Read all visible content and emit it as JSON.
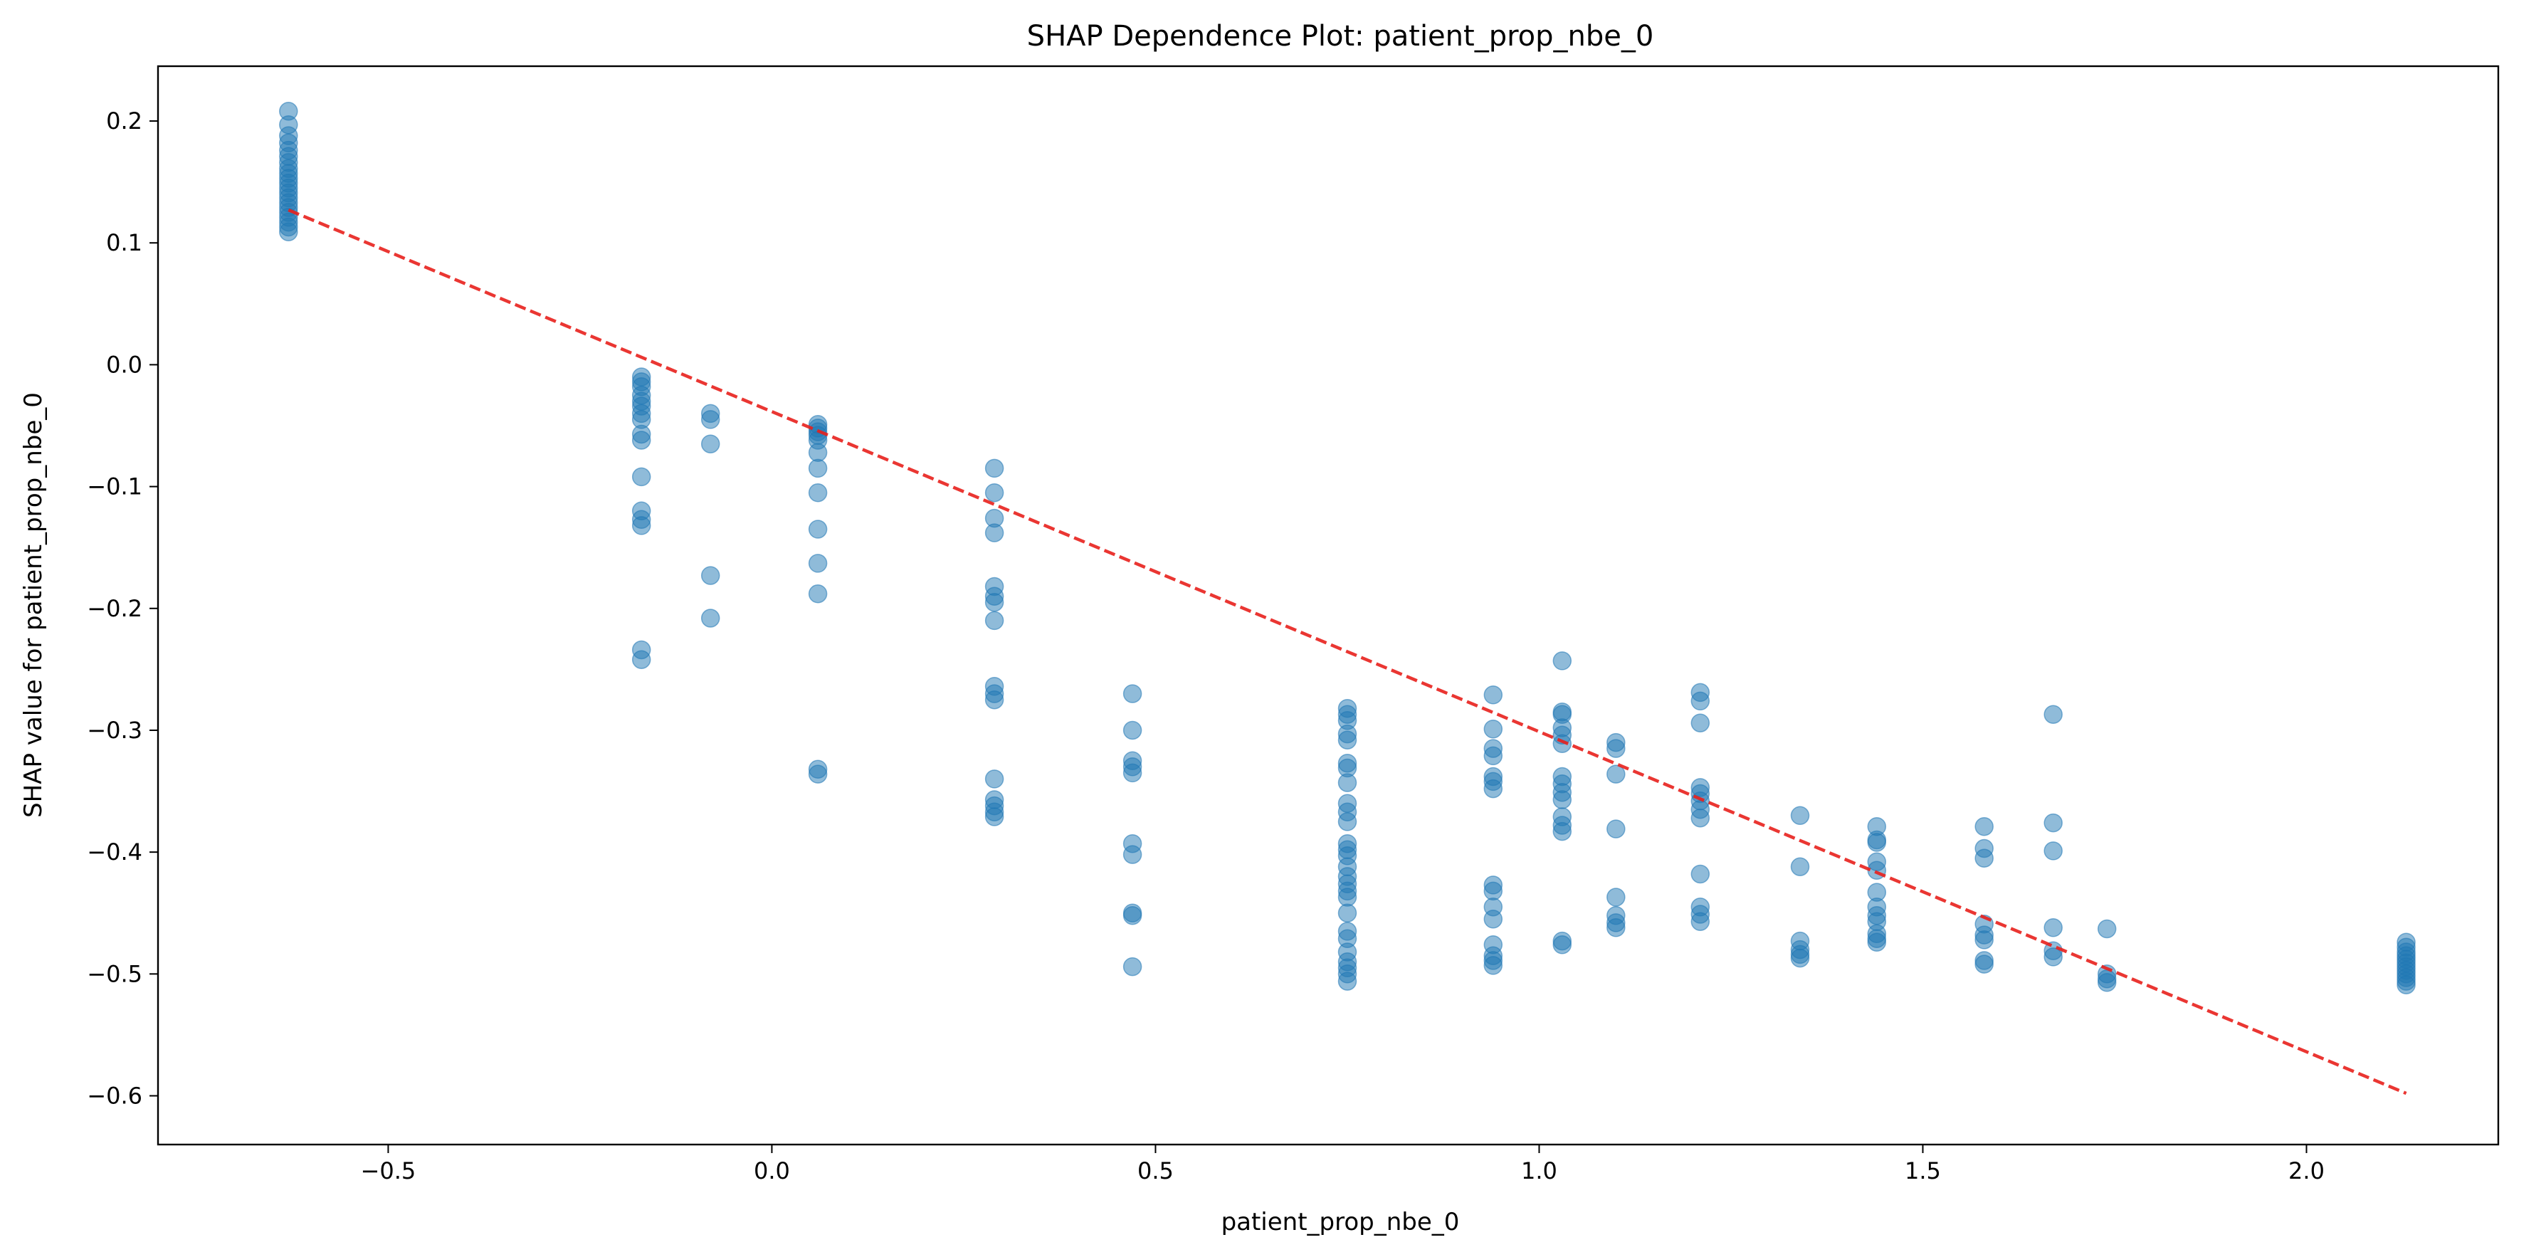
{
  "chart_data": {
    "type": "scatter",
    "title": "SHAP Dependence Plot: patient_prop_nbe_0",
    "xlabel": "patient_prop_nbe_0",
    "ylabel": "SHAP value for patient_prop_nbe_0",
    "xlim": [
      -0.8,
      2.25
    ],
    "ylim": [
      -0.64,
      0.245
    ],
    "xticks": [
      -0.5,
      0.0,
      0.5,
      1.0,
      1.5,
      2.0
    ],
    "xtick_labels": [
      "−0.5",
      "0.0",
      "0.5",
      "1.0",
      "1.5",
      "2.0"
    ],
    "yticks": [
      0.2,
      0.1,
      0.0,
      -0.1,
      -0.2,
      -0.3,
      -0.4,
      -0.5,
      -0.6
    ],
    "ytick_labels": [
      "0.2",
      "0.1",
      "0.0",
      "−0.1",
      "−0.2",
      "−0.3",
      "−0.4",
      "−0.5",
      "−0.6"
    ],
    "grid": false,
    "colors": {
      "points": "#1f77b4",
      "trend": "#e8201c"
    },
    "trend_line": {
      "x": [
        -0.63,
        2.13
      ],
      "y": [
        0.127,
        -0.598
      ],
      "style": "dashed"
    },
    "series": [
      {
        "points": [
          [
            -0.63,
            0.208
          ],
          [
            -0.63,
            0.197
          ],
          [
            -0.63,
            0.188
          ],
          [
            -0.63,
            0.182
          ],
          [
            -0.63,
            0.176
          ],
          [
            -0.63,
            0.171
          ],
          [
            -0.63,
            0.166
          ],
          [
            -0.63,
            0.161
          ],
          [
            -0.63,
            0.157
          ],
          [
            -0.63,
            0.153
          ],
          [
            -0.63,
            0.149
          ],
          [
            -0.63,
            0.145
          ],
          [
            -0.63,
            0.141
          ],
          [
            -0.63,
            0.137
          ],
          [
            -0.63,
            0.133
          ],
          [
            -0.63,
            0.129
          ],
          [
            -0.63,
            0.125
          ],
          [
            -0.63,
            0.121
          ],
          [
            -0.63,
            0.117
          ],
          [
            -0.63,
            0.113
          ],
          [
            -0.63,
            0.109
          ],
          [
            -0.17,
            -0.01
          ],
          [
            -0.17,
            -0.014
          ],
          [
            -0.17,
            -0.018
          ],
          [
            -0.17,
            -0.025
          ],
          [
            -0.17,
            -0.03
          ],
          [
            -0.17,
            -0.034
          ],
          [
            -0.17,
            -0.04
          ],
          [
            -0.17,
            -0.045
          ],
          [
            -0.17,
            -0.057
          ],
          [
            -0.17,
            -0.062
          ],
          [
            -0.17,
            -0.092
          ],
          [
            -0.17,
            -0.12
          ],
          [
            -0.17,
            -0.127
          ],
          [
            -0.17,
            -0.132
          ],
          [
            -0.17,
            -0.234
          ],
          [
            -0.17,
            -0.242
          ],
          [
            -0.08,
            -0.04
          ],
          [
            -0.08,
            -0.045
          ],
          [
            -0.08,
            -0.065
          ],
          [
            -0.08,
            -0.173
          ],
          [
            -0.08,
            -0.208
          ],
          [
            0.06,
            -0.049
          ],
          [
            0.06,
            -0.052
          ],
          [
            0.06,
            -0.055
          ],
          [
            0.06,
            -0.058
          ],
          [
            0.06,
            -0.062
          ],
          [
            0.06,
            -0.072
          ],
          [
            0.06,
            -0.085
          ],
          [
            0.06,
            -0.105
          ],
          [
            0.06,
            -0.135
          ],
          [
            0.06,
            -0.163
          ],
          [
            0.06,
            -0.188
          ],
          [
            0.06,
            -0.332
          ],
          [
            0.06,
            -0.336
          ],
          [
            0.29,
            -0.085
          ],
          [
            0.29,
            -0.105
          ],
          [
            0.29,
            -0.126
          ],
          [
            0.29,
            -0.138
          ],
          [
            0.29,
            -0.182
          ],
          [
            0.29,
            -0.19
          ],
          [
            0.29,
            -0.195
          ],
          [
            0.29,
            -0.21
          ],
          [
            0.29,
            -0.264
          ],
          [
            0.29,
            -0.27
          ],
          [
            0.29,
            -0.275
          ],
          [
            0.29,
            -0.34
          ],
          [
            0.29,
            -0.357
          ],
          [
            0.29,
            -0.362
          ],
          [
            0.29,
            -0.367
          ],
          [
            0.29,
            -0.371
          ],
          [
            0.47,
            -0.27
          ],
          [
            0.47,
            -0.3
          ],
          [
            0.47,
            -0.325
          ],
          [
            0.47,
            -0.33
          ],
          [
            0.47,
            -0.335
          ],
          [
            0.47,
            -0.393
          ],
          [
            0.47,
            -0.402
          ],
          [
            0.47,
            -0.45
          ],
          [
            0.47,
            -0.452
          ],
          [
            0.47,
            -0.494
          ],
          [
            0.75,
            -0.282
          ],
          [
            0.75,
            -0.287
          ],
          [
            0.75,
            -0.292
          ],
          [
            0.75,
            -0.303
          ],
          [
            0.75,
            -0.308
          ],
          [
            0.75,
            -0.327
          ],
          [
            0.75,
            -0.331
          ],
          [
            0.75,
            -0.343
          ],
          [
            0.75,
            -0.36
          ],
          [
            0.75,
            -0.367
          ],
          [
            0.75,
            -0.375
          ],
          [
            0.75,
            -0.393
          ],
          [
            0.75,
            -0.398
          ],
          [
            0.75,
            -0.403
          ],
          [
            0.75,
            -0.412
          ],
          [
            0.75,
            -0.42
          ],
          [
            0.75,
            -0.426
          ],
          [
            0.75,
            -0.432
          ],
          [
            0.75,
            -0.437
          ],
          [
            0.75,
            -0.45
          ],
          [
            0.75,
            -0.465
          ],
          [
            0.75,
            -0.471
          ],
          [
            0.75,
            -0.482
          ],
          [
            0.75,
            -0.49
          ],
          [
            0.75,
            -0.495
          ],
          [
            0.75,
            -0.5
          ],
          [
            0.75,
            -0.506
          ],
          [
            0.94,
            -0.271
          ],
          [
            0.94,
            -0.299
          ],
          [
            0.94,
            -0.315
          ],
          [
            0.94,
            -0.321
          ],
          [
            0.94,
            -0.338
          ],
          [
            0.94,
            -0.342
          ],
          [
            0.94,
            -0.348
          ],
          [
            0.94,
            -0.427
          ],
          [
            0.94,
            -0.432
          ],
          [
            0.94,
            -0.445
          ],
          [
            0.94,
            -0.455
          ],
          [
            0.94,
            -0.476
          ],
          [
            0.94,
            -0.485
          ],
          [
            0.94,
            -0.489
          ],
          [
            0.94,
            -0.493
          ],
          [
            1.03,
            -0.243
          ],
          [
            1.03,
            -0.285
          ],
          [
            1.03,
            -0.287
          ],
          [
            1.03,
            -0.298
          ],
          [
            1.03,
            -0.304
          ],
          [
            1.03,
            -0.311
          ],
          [
            1.03,
            -0.338
          ],
          [
            1.03,
            -0.344
          ],
          [
            1.03,
            -0.351
          ],
          [
            1.03,
            -0.357
          ],
          [
            1.03,
            -0.371
          ],
          [
            1.03,
            -0.378
          ],
          [
            1.03,
            -0.383
          ],
          [
            1.03,
            -0.473
          ],
          [
            1.03,
            -0.476
          ],
          [
            1.1,
            -0.31
          ],
          [
            1.1,
            -0.315
          ],
          [
            1.1,
            -0.336
          ],
          [
            1.1,
            -0.381
          ],
          [
            1.1,
            -0.437
          ],
          [
            1.1,
            -0.452
          ],
          [
            1.1,
            -0.458
          ],
          [
            1.1,
            -0.462
          ],
          [
            1.21,
            -0.269
          ],
          [
            1.21,
            -0.276
          ],
          [
            1.21,
            -0.294
          ],
          [
            1.21,
            -0.347
          ],
          [
            1.21,
            -0.352
          ],
          [
            1.21,
            -0.358
          ],
          [
            1.21,
            -0.365
          ],
          [
            1.21,
            -0.372
          ],
          [
            1.21,
            -0.418
          ],
          [
            1.21,
            -0.445
          ],
          [
            1.21,
            -0.451
          ],
          [
            1.21,
            -0.457
          ],
          [
            1.34,
            -0.37
          ],
          [
            1.34,
            -0.412
          ],
          [
            1.34,
            -0.473
          ],
          [
            1.34,
            -0.48
          ],
          [
            1.34,
            -0.484
          ],
          [
            1.34,
            -0.487
          ],
          [
            1.44,
            -0.379
          ],
          [
            1.44,
            -0.39
          ],
          [
            1.44,
            -0.392
          ],
          [
            1.44,
            -0.408
          ],
          [
            1.44,
            -0.415
          ],
          [
            1.44,
            -0.433
          ],
          [
            1.44,
            -0.445
          ],
          [
            1.44,
            -0.452
          ],
          [
            1.44,
            -0.457
          ],
          [
            1.44,
            -0.467
          ],
          [
            1.44,
            -0.471
          ],
          [
            1.44,
            -0.474
          ],
          [
            1.58,
            -0.379
          ],
          [
            1.58,
            -0.397
          ],
          [
            1.58,
            -0.405
          ],
          [
            1.58,
            -0.459
          ],
          [
            1.58,
            -0.468
          ],
          [
            1.58,
            -0.472
          ],
          [
            1.58,
            -0.489
          ],
          [
            1.58,
            -0.492
          ],
          [
            1.67,
            -0.287
          ],
          [
            1.67,
            -0.376
          ],
          [
            1.67,
            -0.399
          ],
          [
            1.67,
            -0.462
          ],
          [
            1.67,
            -0.481
          ],
          [
            1.67,
            -0.486
          ],
          [
            1.74,
            -0.463
          ],
          [
            1.74,
            -0.5
          ],
          [
            1.74,
            -0.504
          ],
          [
            1.74,
            -0.507
          ],
          [
            2.13,
            -0.474
          ],
          [
            2.13,
            -0.478
          ],
          [
            2.13,
            -0.482
          ],
          [
            2.13,
            -0.485
          ],
          [
            2.13,
            -0.488
          ],
          [
            2.13,
            -0.491
          ],
          [
            2.13,
            -0.494
          ],
          [
            2.13,
            -0.497
          ],
          [
            2.13,
            -0.5
          ],
          [
            2.13,
            -0.503
          ],
          [
            2.13,
            -0.506
          ],
          [
            2.13,
            -0.509
          ]
        ]
      }
    ]
  }
}
